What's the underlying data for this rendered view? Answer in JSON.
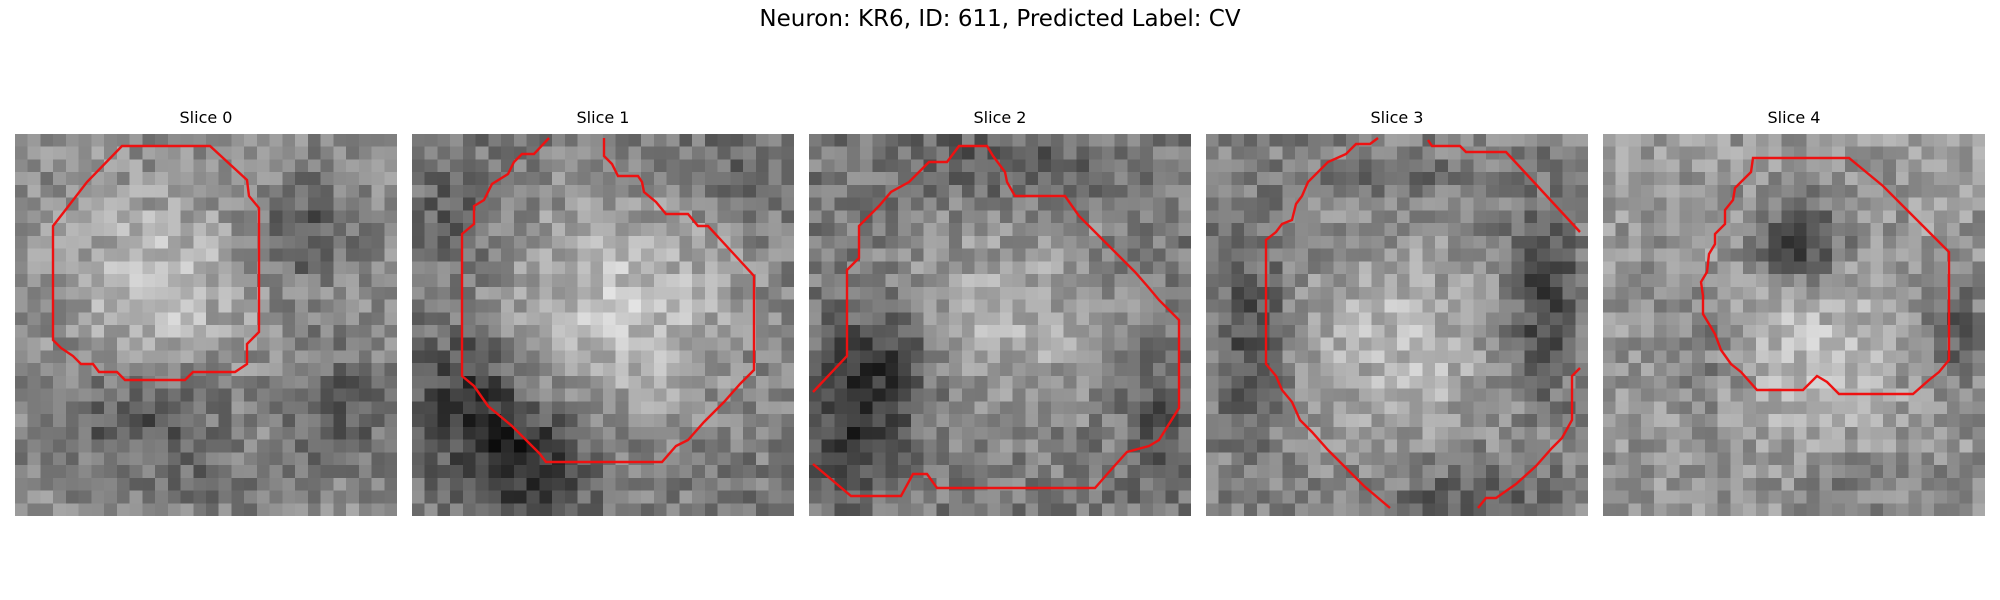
{
  "figure": {
    "title": "Neuron: KR6, ID: 611, Predicted Label: CV"
  },
  "colors": {
    "contour": "#ee1111",
    "background": "#ffffff",
    "colormap": "gray"
  },
  "panels": [
    {
      "title": "Slice 0"
    },
    {
      "title": "Slice 1"
    },
    {
      "title": "Slice 2"
    },
    {
      "title": "Slice 3"
    },
    {
      "title": "Slice 4"
    }
  ]
}
